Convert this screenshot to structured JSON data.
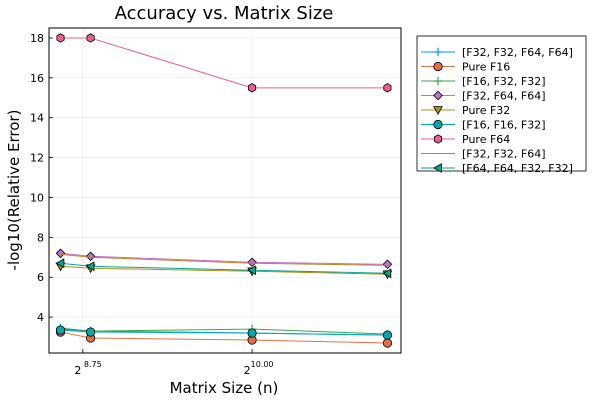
{
  "chart_data": {
    "type": "line",
    "title": "Accuracy vs. Matrix Size",
    "xlabel": "Matrix Size (n)",
    "ylabel": "-log10(Relative Error)",
    "x_scale": "log2",
    "x": [
      384,
      448,
      1024,
      2048
    ],
    "xticks": [
      {
        "value": 430.5,
        "base": "2",
        "exp": "8.75"
      },
      {
        "value": 1024,
        "base": "2",
        "exp": "10.00"
      }
    ],
    "yticks": [
      4,
      6,
      8,
      10,
      12,
      14,
      16,
      18
    ],
    "ylim": [
      2.2,
      18.5
    ],
    "grid": true,
    "legend_position": "top-right outside",
    "series": [
      {
        "name": "[F32, F32, F64, F64]",
        "color": "#009AFA",
        "marker": "cross",
        "values": [
          3.4,
          3.3,
          3.2,
          3.1
        ]
      },
      {
        "name": "Pure F16",
        "color": "#E36F47",
        "marker": "circle",
        "values": [
          3.25,
          2.95,
          2.85,
          2.7
        ]
      },
      {
        "name": "[F16, F32, F32]",
        "color": "#3EA44E",
        "marker": "cross",
        "values": [
          3.45,
          3.3,
          3.4,
          3.15
        ]
      },
      {
        "name": "[F32, F64, F64]",
        "color": "#C371D2",
        "marker": "diamond",
        "values": [
          7.2,
          7.05,
          6.75,
          6.65
        ]
      },
      {
        "name": "Pure F32",
        "color": "#AC8E18",
        "marker": "triangle-down",
        "values": [
          6.55,
          6.45,
          6.3,
          6.15
        ]
      },
      {
        "name": "[F16, F16, F32]",
        "color": "#00A9AD",
        "marker": "circle",
        "values": [
          3.35,
          3.25,
          3.2,
          3.1
        ]
      },
      {
        "name": "Pure F64",
        "color": "#ED5D92",
        "marker": "hexagon",
        "values": [
          18.0,
          18.0,
          15.5,
          15.5
        ]
      },
      {
        "name": "[F32, F32, F64]",
        "color": "#C68125",
        "marker": "none",
        "values": [
          7.15,
          7.0,
          6.7,
          6.6
        ]
      },
      {
        "name": "[F64, F64, F32, F32]",
        "color": "#00A98D",
        "marker": "triangle-left",
        "values": [
          6.7,
          6.55,
          6.35,
          6.2
        ]
      }
    ]
  }
}
